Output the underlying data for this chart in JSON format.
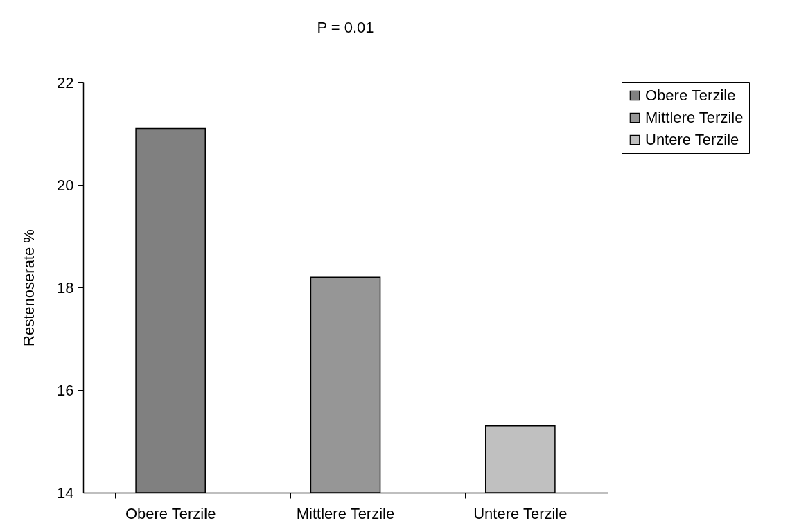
{
  "chart_data": {
    "type": "bar",
    "title": "P = 0.01",
    "ylabel": "Restenoserate %",
    "categories": [
      "Obere Terzile",
      "Mittlere Terzile",
      "Untere Terzile"
    ],
    "series": [
      {
        "name": "Obere Terzile",
        "color": "#808080",
        "values": [
          21.1,
          null,
          null
        ]
      },
      {
        "name": "Mittlere Terzile",
        "color": "#969696",
        "values": [
          null,
          18.2,
          null
        ]
      },
      {
        "name": "Untere Terzile",
        "color": "#c0c0c0",
        "values": [
          null,
          null,
          15.3
        ]
      }
    ],
    "ylim": [
      14,
      22
    ],
    "yticks": [
      14,
      16,
      18,
      20,
      22
    ],
    "grid": false,
    "legend": "right"
  }
}
